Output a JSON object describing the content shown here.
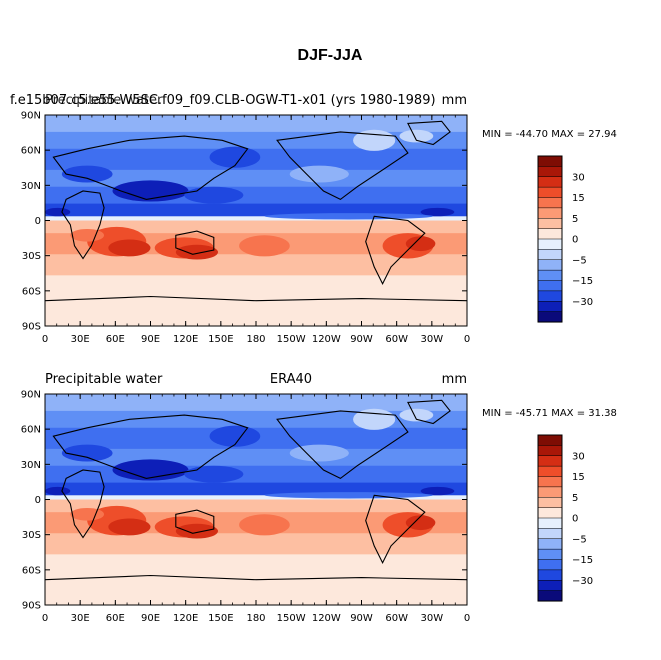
{
  "figure_title": "DJF-JJA",
  "colors": {
    "scale": [
      "#0a0a7a",
      "#0d1fb8",
      "#1f48e0",
      "#3f6ff0",
      "#5f8ff5",
      "#8fb2f8",
      "#c2d6fb",
      "#e6f0fd",
      "#fde8dc",
      "#fdbfa2",
      "#fb9a75",
      "#f7744e",
      "#ee4e2a",
      "#d42e14",
      "#a91708",
      "#7e0d04"
    ]
  },
  "panels": [
    {
      "left_title": "f.e15b07.c5.e55.W5SC.f09_f09.CLB-OGW-T1-x01 (yrs 1980-1989)",
      "left_overlay": "Precipitable water",
      "center_title": "",
      "units": "mm",
      "stats": "MIN = -44.70 MAX =  27.94"
    },
    {
      "left_title": "Precipitable water",
      "left_overlay": "",
      "center_title": "ERA40",
      "units": "mm",
      "stats": "MIN = -45.71 MAX =  31.38"
    }
  ],
  "lat_labels": [
    "90N",
    "60N",
    "30N",
    "0",
    "30S",
    "60S",
    "90S"
  ],
  "lon_labels": [
    "0",
    "30E",
    "60E",
    "90E",
    "120E",
    "150E",
    "180",
    "150W",
    "120W",
    "90W",
    "60W",
    "30W",
    "0"
  ],
  "colorbar_labels": [
    "30",
    "15",
    "5",
    "0",
    "-5",
    "-15",
    "-30"
  ]
}
